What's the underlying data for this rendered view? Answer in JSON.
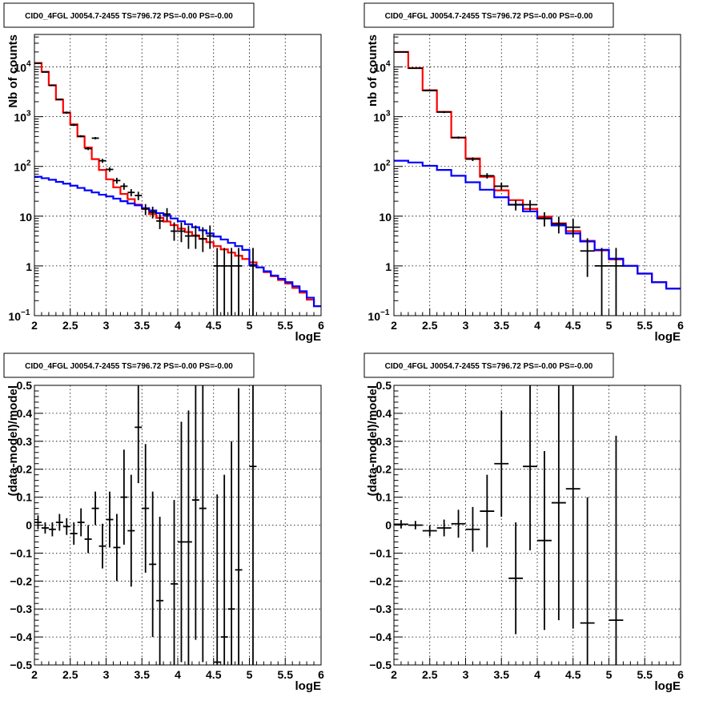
{
  "chart_data": [
    {
      "type": "line",
      "title": "CID0_4FGL J0054.7-2455 TS=796.72 PS=-0.00 PS=-0.00",
      "xlabel": "logE",
      "ylabel": "Nb of counts",
      "xlim": [
        2,
        6
      ],
      "ylim": [
        0.1,
        45000
      ],
      "yscale": "log",
      "grid": true,
      "x_ticks": [
        "2",
        "2.5",
        "3",
        "3.5",
        "4",
        "4.5",
        "5",
        "5.5",
        "6"
      ],
      "y_ticks": [
        {
          "value": 0.1,
          "label": "10",
          "exp": "−1"
        },
        {
          "value": 1,
          "label": "1",
          "exp": ""
        },
        {
          "value": 10,
          "label": "10",
          "exp": ""
        },
        {
          "value": 100,
          "label": "10",
          "exp": "2"
        },
        {
          "value": 1000,
          "label": "10",
          "exp": "3"
        },
        {
          "value": 10000,
          "label": "10",
          "exp": "4"
        }
      ],
      "bin_edges": [
        2.0,
        2.1,
        2.2,
        2.3,
        2.4,
        2.5,
        2.6,
        2.7,
        2.8,
        2.9,
        3.0,
        3.1,
        3.2,
        3.3,
        3.4,
        3.5,
        3.6,
        3.7,
        3.8,
        3.9,
        4.0,
        4.1,
        4.2,
        4.3,
        4.4,
        4.5,
        4.6,
        4.7,
        4.8,
        4.9,
        5.0,
        5.1,
        5.2,
        5.3,
        5.4,
        5.5,
        5.6,
        5.7,
        5.8,
        5.9,
        6.0
      ],
      "series": [
        {
          "color": "#ff0000",
          "values": [
            12000,
            8000,
            4300,
            2200,
            1200,
            700,
            400,
            240,
            140,
            85,
            55,
            38,
            28,
            22,
            17,
            14,
            11,
            9.2,
            7.8,
            6.6,
            5.6,
            4.8,
            4.1,
            3.5,
            3.0,
            2.5,
            2.15,
            1.85,
            1.6,
            1.38,
            1.18,
            0.93,
            0.75,
            0.62,
            0.52,
            0.44,
            0.36,
            0.29,
            0.21,
            0.155
          ]
        },
        {
          "color": "#0000ff",
          "values": [
            62,
            58,
            54,
            49,
            45,
            41,
            37,
            33,
            30,
            27,
            25,
            22.5,
            20,
            18,
            16.5,
            14.5,
            13,
            11.5,
            10.2,
            9,
            7.9,
            6.9,
            6,
            5.2,
            4.5,
            3.9,
            3.4,
            2.9,
            2.5,
            2.1,
            1.05,
            0.93,
            0.78,
            0.64,
            0.55,
            0.47,
            0.39,
            0.31,
            0.23,
            0.155
          ]
        }
      ],
      "points": [
        {
          "x": 2.05,
          "y": 11800,
          "lo": 11500,
          "hi": 12100
        },
        {
          "x": 2.15,
          "y": 7900,
          "lo": 7700,
          "hi": 8100
        },
        {
          "x": 2.25,
          "y": 4250,
          "lo": 4100,
          "hi": 4400
        },
        {
          "x": 2.35,
          "y": 2230,
          "lo": 2150,
          "hi": 2320
        },
        {
          "x": 2.45,
          "y": 1210,
          "lo": 1150,
          "hi": 1270
        },
        {
          "x": 2.55,
          "y": 680,
          "lo": 650,
          "hi": 710
        },
        {
          "x": 2.65,
          "y": 405,
          "lo": 385,
          "hi": 425
        },
        {
          "x": 2.75,
          "y": 228,
          "lo": 213,
          "hi": 243
        },
        {
          "x": 2.85,
          "y": 370,
          "lo": 350,
          "hi": 390
        },
        {
          "x": 2.95,
          "y": 130,
          "lo": 118,
          "hi": 142
        },
        {
          "x": 3.05,
          "y": 87,
          "lo": 78,
          "hi": 96
        },
        {
          "x": 3.15,
          "y": 52,
          "lo": 45,
          "hi": 59
        },
        {
          "x": 3.25,
          "y": 40,
          "lo": 34,
          "hi": 46
        },
        {
          "x": 3.35,
          "y": 30,
          "lo": 25,
          "hi": 35
        },
        {
          "x": 3.45,
          "y": 26,
          "lo": 21,
          "hi": 31
        },
        {
          "x": 3.55,
          "y": 14,
          "lo": 10.5,
          "hi": 17.5
        },
        {
          "x": 3.65,
          "y": 12,
          "lo": 9,
          "hi": 15.5
        },
        {
          "x": 3.75,
          "y": 8,
          "lo": 5.5,
          "hi": 11
        },
        {
          "x": 3.85,
          "y": 11,
          "lo": 8,
          "hi": 14.5
        },
        {
          "x": 3.95,
          "y": 5,
          "lo": 3.2,
          "hi": 7.5
        },
        {
          "x": 4.05,
          "y": 5,
          "lo": 3.0,
          "hi": 7.5
        },
        {
          "x": 4.15,
          "y": 4,
          "lo": 2.2,
          "hi": 6.5
        },
        {
          "x": 4.25,
          "y": 4,
          "lo": 2.2,
          "hi": 6.5
        },
        {
          "x": 4.35,
          "y": 3.5,
          "lo": 1.9,
          "hi": 6.0
        },
        {
          "x": 4.45,
          "y": 4,
          "lo": 2.2,
          "hi": 6.5
        },
        {
          "x": 4.55,
          "y": 1,
          "lo": 0.1,
          "hi": 2.3
        },
        {
          "x": 4.65,
          "y": 1,
          "lo": 0.1,
          "hi": 2.3
        },
        {
          "x": 4.75,
          "y": 1,
          "lo": 0.1,
          "hi": 2.3
        },
        {
          "x": 4.85,
          "y": 1,
          "lo": 0.1,
          "hi": 2.3
        },
        {
          "x": 5.05,
          "y": 1,
          "lo": 0.1,
          "hi": 2.3
        }
      ]
    },
    {
      "type": "line",
      "title": "CID0_4FGL J0054.7-2455 TS=796.72 PS=-0.00 PS=-0.00",
      "xlabel": "logE",
      "ylabel": "nb of counts",
      "xlim": [
        2,
        6
      ],
      "ylim": [
        0.1,
        45000
      ],
      "yscale": "log",
      "grid": true,
      "x_ticks": [
        "2",
        "2.5",
        "3",
        "3.5",
        "4",
        "4.5",
        "5",
        "5.5",
        "6"
      ],
      "y_ticks": [
        {
          "value": 0.1,
          "label": "10",
          "exp": "−1"
        },
        {
          "value": 1,
          "label": "1",
          "exp": ""
        },
        {
          "value": 10,
          "label": "10",
          "exp": ""
        },
        {
          "value": 100,
          "label": "10",
          "exp": "2"
        },
        {
          "value": 1000,
          "label": "10",
          "exp": "3"
        },
        {
          "value": 10000,
          "label": "10",
          "exp": "4"
        }
      ],
      "bin_edges": [
        2.0,
        2.2,
        2.4,
        2.6,
        2.8,
        3.0,
        3.2,
        3.4,
        3.6,
        3.8,
        4.0,
        4.2,
        4.4,
        4.6,
        4.8,
        5.0,
        5.2,
        5.4,
        5.6,
        5.8,
        6.0
      ],
      "series": [
        {
          "color": "#ff0000",
          "values": [
            20000,
            9500,
            3400,
            1250,
            380,
            145,
            62,
            33,
            21,
            14,
            9.8,
            7.2,
            5.0,
            3.2,
            2.05,
            1.35,
            1.0,
            0.7,
            0.47,
            0.35
          ]
        },
        {
          "color": "#0000ff",
          "values": [
            130,
            120,
            103,
            85,
            65,
            48,
            34,
            24,
            17,
            12.5,
            9,
            6.5,
            4.5,
            3.1,
            2.1,
            1.4,
            1.0,
            0.7,
            0.47,
            0.35
          ]
        }
      ],
      "points": [
        {
          "x": 2.1,
          "y": 20000,
          "lo": 19700,
          "hi": 20300
        },
        {
          "x": 2.3,
          "y": 9400,
          "lo": 9200,
          "hi": 9600
        },
        {
          "x": 2.5,
          "y": 3350,
          "lo": 3250,
          "hi": 3450
        },
        {
          "x": 2.7,
          "y": 1240,
          "lo": 1180,
          "hi": 1300
        },
        {
          "x": 2.9,
          "y": 380,
          "lo": 360,
          "hi": 400
        },
        {
          "x": 3.1,
          "y": 140,
          "lo": 128,
          "hi": 152
        },
        {
          "x": 3.3,
          "y": 65,
          "lo": 57,
          "hi": 73
        },
        {
          "x": 3.5,
          "y": 40,
          "lo": 34,
          "hi": 47
        },
        {
          "x": 3.7,
          "y": 17,
          "lo": 13,
          "hi": 21
        },
        {
          "x": 3.9,
          "y": 17,
          "lo": 13,
          "hi": 21
        },
        {
          "x": 4.1,
          "y": 9,
          "lo": 6.2,
          "hi": 12
        },
        {
          "x": 4.3,
          "y": 7,
          "lo": 4.5,
          "hi": 9.8
        },
        {
          "x": 4.5,
          "y": 6,
          "lo": 3.7,
          "hi": 8.8
        },
        {
          "x": 4.7,
          "y": 2,
          "lo": 0.6,
          "hi": 3.6
        },
        {
          "x": 4.9,
          "y": 1,
          "lo": 0.1,
          "hi": 2.3
        },
        {
          "x": 5.1,
          "y": 1,
          "lo": 0.1,
          "hi": 2.3
        }
      ]
    },
    {
      "type": "scatter",
      "title": "CID0_4FGL J0054.7-2455 TS=796.72 PS=-0.00 PS=-0.00",
      "xlabel": "logE",
      "ylabel": "(data-model)/model",
      "xlim": [
        2,
        6
      ],
      "ylim": [
        -0.5,
        0.5
      ],
      "grid": true,
      "x_ticks": [
        "2",
        "2.5",
        "3",
        "3.5",
        "4",
        "4.5",
        "5",
        "5.5",
        "6"
      ],
      "y_ticks": [
        "−0.5",
        "−0.4",
        "−0.3",
        "−0.2",
        "−0.1",
        "0",
        "0.1",
        "0.2",
        "0.3",
        "0.4",
        "0.5"
      ],
      "x_halfwidth": 0.05,
      "points": [
        {
          "x": 2.05,
          "y": 0.01,
          "err": 0.025
        },
        {
          "x": 2.15,
          "y": -0.01,
          "err": 0.02
        },
        {
          "x": 2.25,
          "y": -0.015,
          "err": 0.025
        },
        {
          "x": 2.35,
          "y": 0.01,
          "err": 0.03
        },
        {
          "x": 2.45,
          "y": -0.005,
          "err": 0.03
        },
        {
          "x": 2.55,
          "y": -0.03,
          "err": 0.04
        },
        {
          "x": 2.65,
          "y": 0.01,
          "err": 0.05
        },
        {
          "x": 2.75,
          "y": -0.05,
          "err": 0.05
        },
        {
          "x": 2.85,
          "y": 0.06,
          "err": 0.06
        },
        {
          "x": 2.95,
          "y": -0.075,
          "err": 0.08
        },
        {
          "x": 3.05,
          "y": 0.02,
          "err": 0.1
        },
        {
          "x": 3.15,
          "y": -0.08,
          "err": 0.12
        },
        {
          "x": 3.25,
          "y": 0.1,
          "err": 0.17
        },
        {
          "x": 3.35,
          "y": -0.02,
          "err": 0.2
        },
        {
          "x": 3.45,
          "y": 0.35,
          "err": 0.2
        },
        {
          "x": 3.55,
          "y": 0.06,
          "err": 0.23
        },
        {
          "x": 3.65,
          "y": -0.14,
          "err": 0.26
        },
        {
          "x": 3.75,
          "y": -0.27,
          "err": 0.3
        },
        {
          "x": 3.95,
          "y": -0.21,
          "err": 0.3
        },
        {
          "x": 4.05,
          "y": -0.06,
          "err": 0.43
        },
        {
          "x": 4.15,
          "y": -0.06,
          "err": 0.47
        },
        {
          "x": 4.25,
          "y": 0.09,
          "err": 0.5
        },
        {
          "x": 4.35,
          "y": 0.06,
          "err": 0.55
        },
        {
          "x": 4.55,
          "y": -0.49,
          "err": 0.6
        },
        {
          "x": 4.65,
          "y": -0.4,
          "err": 0.58
        },
        {
          "x": 4.75,
          "y": -0.3,
          "err": 0.6
        },
        {
          "x": 4.85,
          "y": -0.16,
          "err": 0.65
        },
        {
          "x": 5.05,
          "y": 0.21,
          "err": 0.8
        }
      ]
    },
    {
      "type": "scatter",
      "title": "CID0_4FGL J0054.7-2455 TS=796.72 PS=-0.00 PS=-0.00",
      "xlabel": "logE",
      "ylabel": "(data-model)/model",
      "xlim": [
        2,
        6
      ],
      "ylim": [
        -0.5,
        0.5
      ],
      "grid": true,
      "x_ticks": [
        "2",
        "2.5",
        "3",
        "3.5",
        "4",
        "4.5",
        "5",
        "5.5",
        "6"
      ],
      "y_ticks": [
        "−0.5",
        "−0.4",
        "−0.3",
        "−0.2",
        "−0.1",
        "0",
        "0.1",
        "0.2",
        "0.3",
        "0.4",
        "0.5"
      ],
      "x_halfwidth": 0.1,
      "points": [
        {
          "x": 2.1,
          "y": 0.003,
          "err": 0.015
        },
        {
          "x": 2.3,
          "y": 0.0,
          "err": 0.015
        },
        {
          "x": 2.5,
          "y": -0.02,
          "err": 0.02
        },
        {
          "x": 2.7,
          "y": -0.01,
          "err": 0.03
        },
        {
          "x": 2.9,
          "y": 0.005,
          "err": 0.05
        },
        {
          "x": 3.1,
          "y": -0.015,
          "err": 0.08
        },
        {
          "x": 3.3,
          "y": 0.05,
          "err": 0.13
        },
        {
          "x": 3.5,
          "y": 0.22,
          "err": 0.19
        },
        {
          "x": 3.7,
          "y": -0.19,
          "err": 0.2
        },
        {
          "x": 3.9,
          "y": 0.21,
          "err": 0.3
        },
        {
          "x": 4.1,
          "y": -0.055,
          "err": 0.32
        },
        {
          "x": 4.3,
          "y": 0.08,
          "err": 0.42
        },
        {
          "x": 4.5,
          "y": 0.13,
          "err": 0.5
        },
        {
          "x": 4.7,
          "y": -0.35,
          "err": 0.45
        },
        {
          "x": 5.1,
          "y": -0.34,
          "err": 0.66
        }
      ]
    }
  ]
}
